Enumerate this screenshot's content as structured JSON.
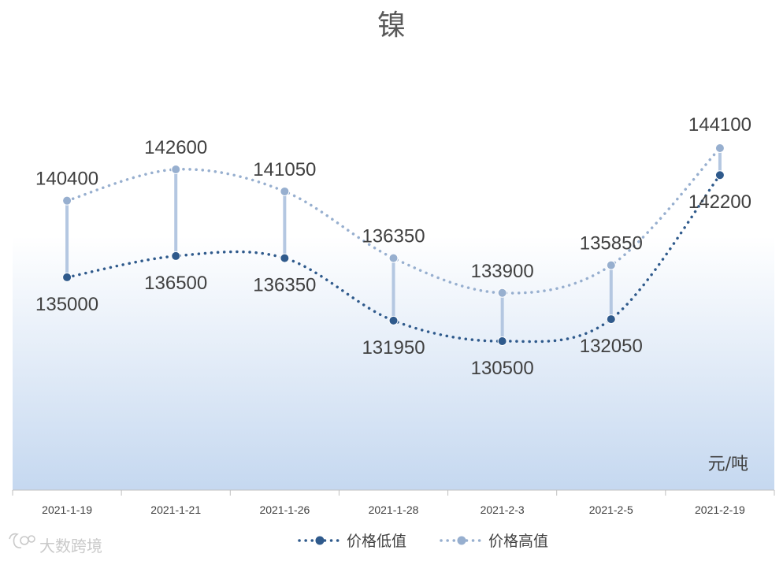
{
  "chart_data": {
    "type": "line",
    "title": "镍",
    "unit_label": "元/吨",
    "categories": [
      "2021-1-19",
      "2021-1-21",
      "2021-1-26",
      "2021-1-28",
      "2021-2-3",
      "2021-2-5",
      "2021-2-19"
    ],
    "series": [
      {
        "name": "价格低值",
        "values": [
          135000,
          136500,
          136350,
          131950,
          130500,
          132050,
          142200
        ],
        "color": "#2F5A8C"
      },
      {
        "name": "价格高值",
        "values": [
          140400,
          142600,
          141050,
          136350,
          133900,
          135850,
          144100
        ],
        "color": "#97AFCF"
      }
    ],
    "high_low_lines": true,
    "legend_position": "bottom",
    "grid": false
  },
  "watermark": "大数跨境",
  "colors": {
    "gradient_top": "#ffffff",
    "gradient_bottom": "#c5d8f0",
    "hilo_line": "#b4c7e1",
    "axis": "#bfbfbf"
  }
}
